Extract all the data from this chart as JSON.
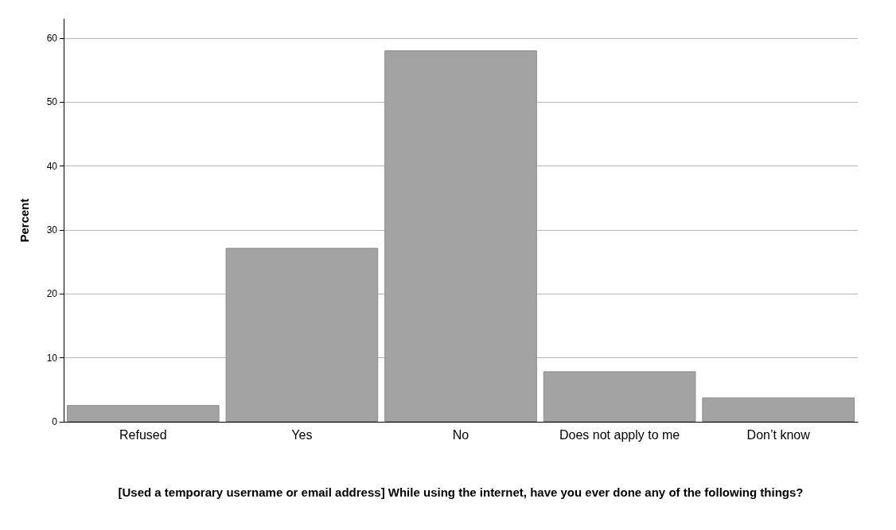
{
  "chart_data": {
    "type": "bar",
    "xlabel": "[Used a temporary username or email address] While using the internet, have you ever done any of the following things?",
    "ylabel": "Percent",
    "categories": [
      "Refused",
      "Yes",
      "No",
      "Does not apply to me",
      "Don’t know"
    ],
    "values": [
      2.6,
      27.2,
      58.1,
      7.9,
      3.8
    ],
    "color": "#a3a3a3",
    "ylim": [
      0,
      63
    ],
    "yticks": [
      0,
      10,
      20,
      30,
      40,
      50,
      60
    ],
    "grid": "y"
  }
}
